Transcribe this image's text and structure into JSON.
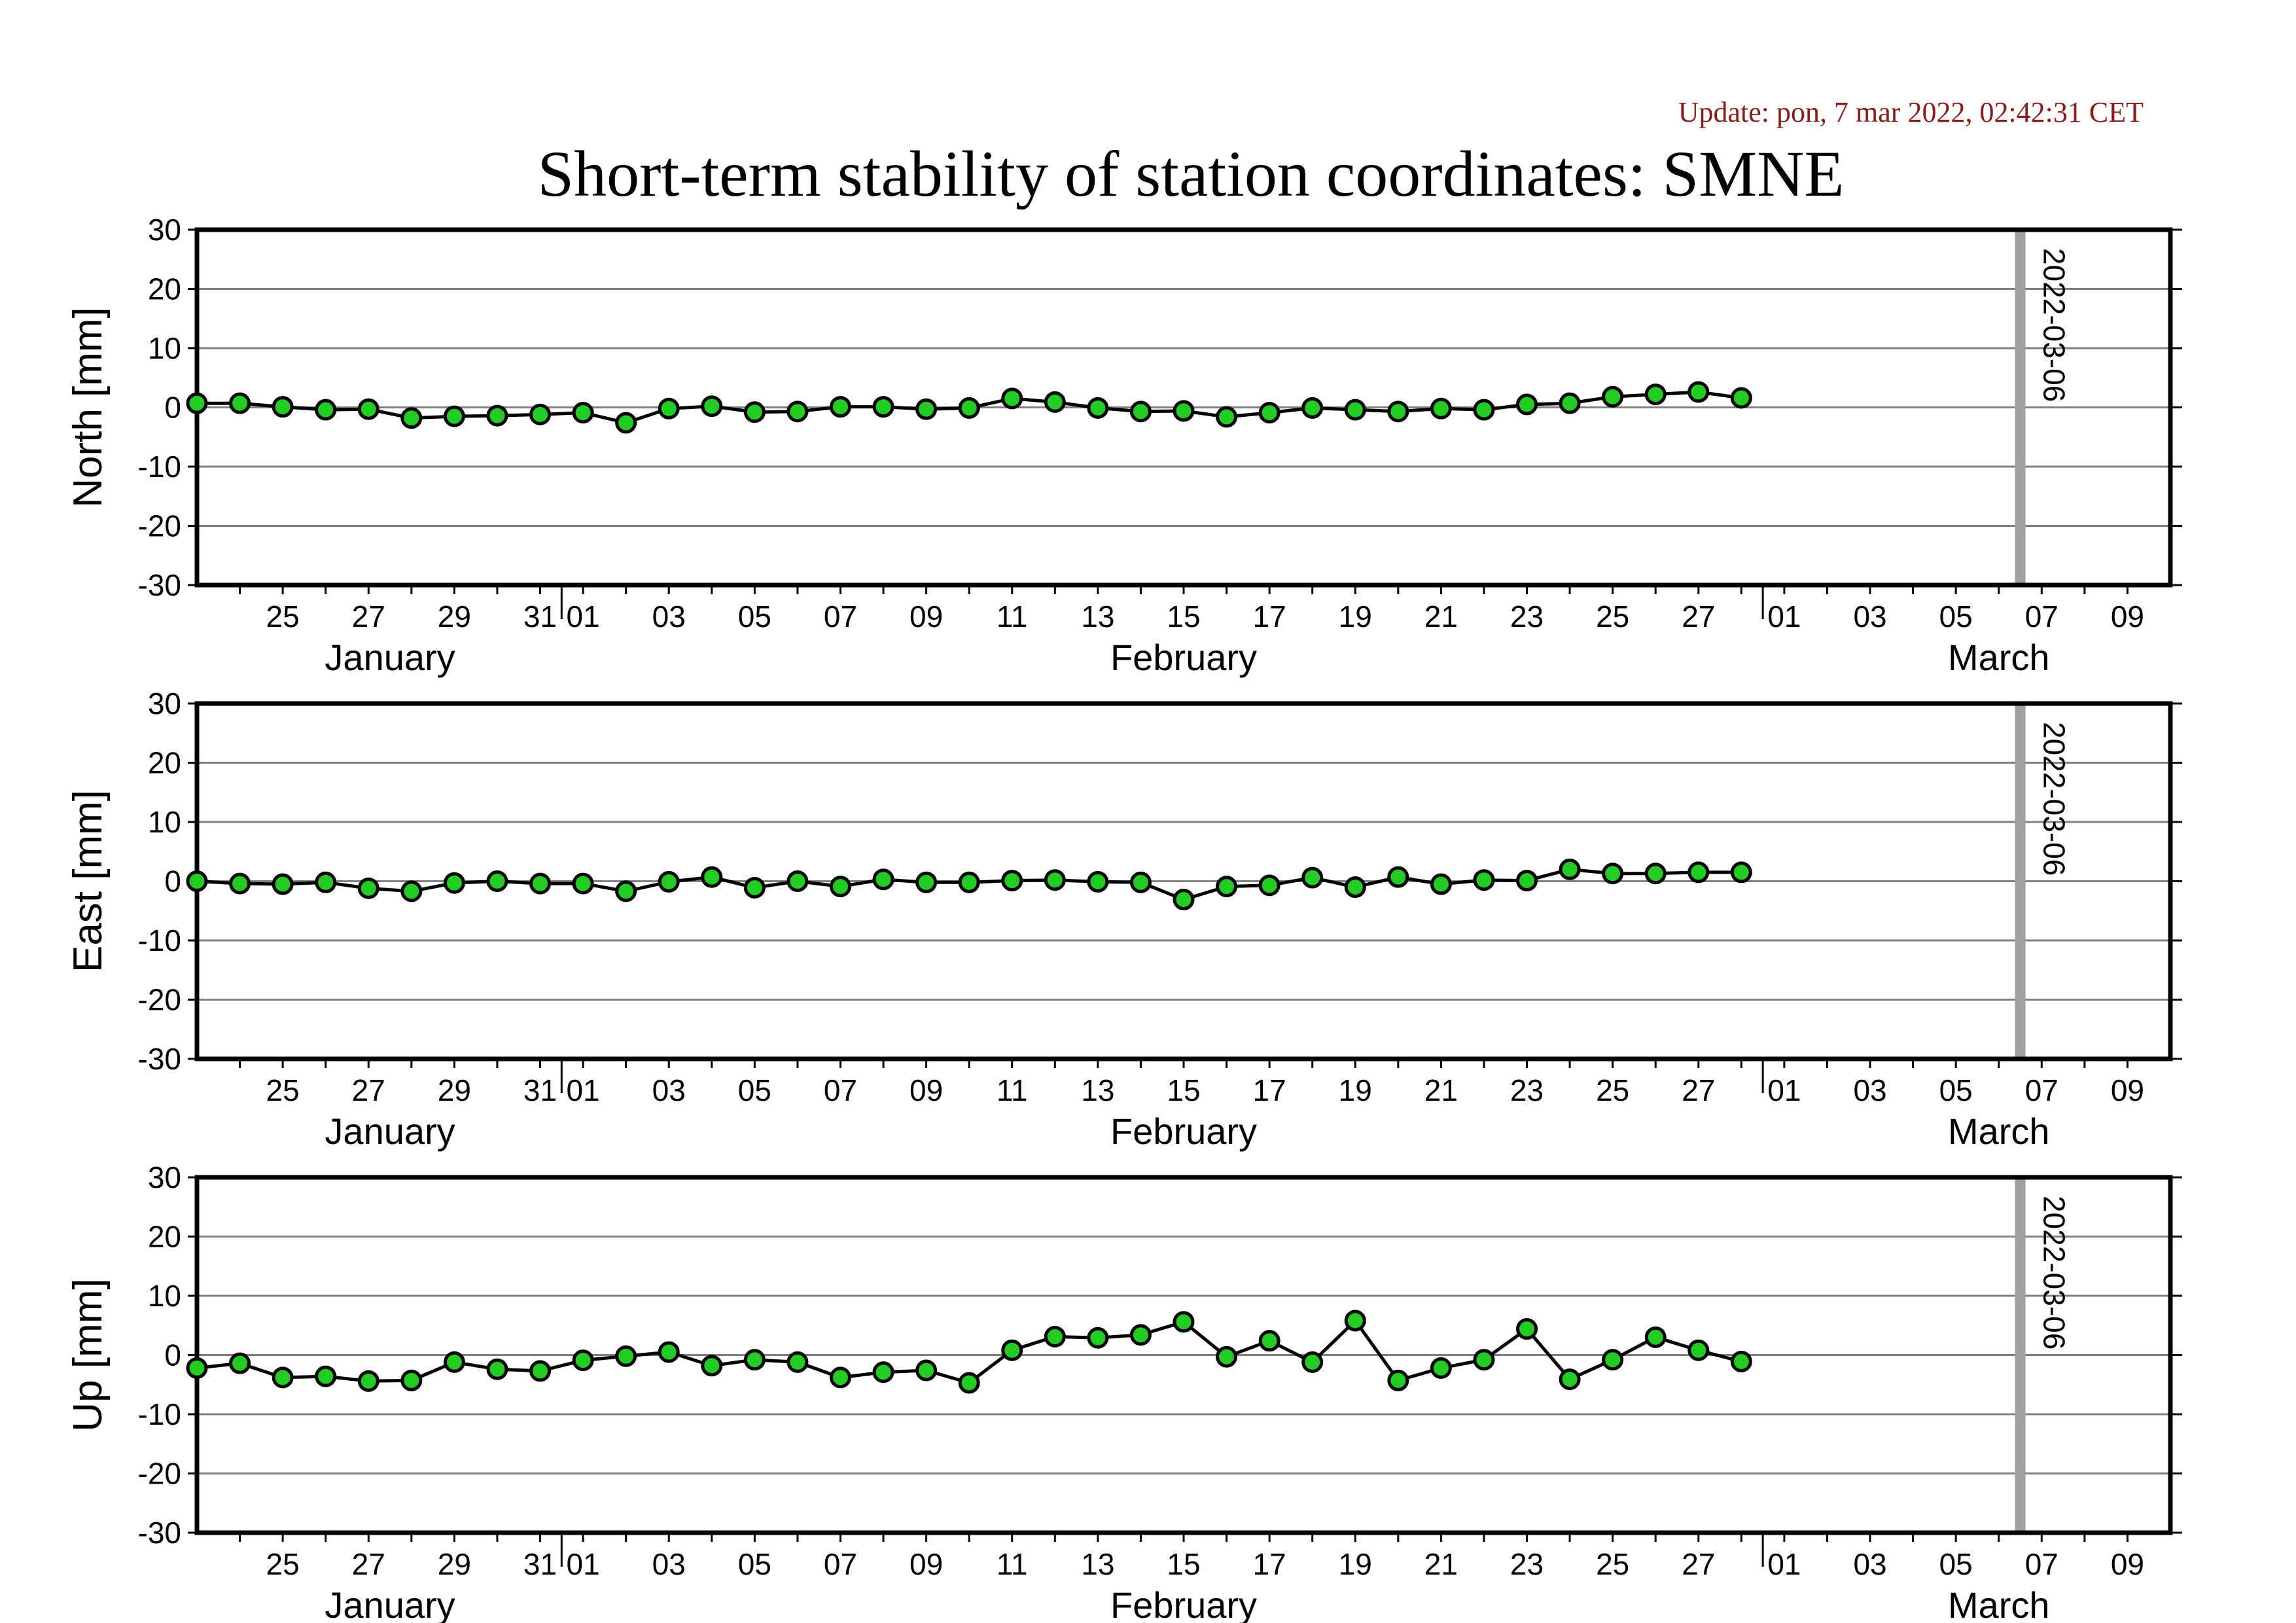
{
  "header": {
    "update": "Update: pon, 7 mar 2022, 02:42:31 CET",
    "title": "Short-term stability of station coordinates: SMNE"
  },
  "colors": {
    "marker_fill": "#22cc22",
    "marker_stroke": "#000000",
    "grid": "#808080",
    "vline": "#a0a0a0",
    "update_text": "#8b1a1a"
  },
  "chart_data": [
    {
      "type": "line",
      "ylabel": "North [mm]",
      "ylim": [
        -30,
        30
      ],
      "yticks": [
        30,
        20,
        10,
        0,
        -10,
        -20,
        -30
      ],
      "x_range": [
        "2022-01-23",
        "2022-03-10"
      ],
      "x_tick_labels": [
        "25",
        "27",
        "29",
        "31",
        "01",
        "03",
        "05",
        "07",
        "09",
        "11",
        "13",
        "15",
        "17",
        "19",
        "21",
        "23",
        "25",
        "27",
        "01",
        "03",
        "05",
        "07",
        "09"
      ],
      "month_labels": [
        "January",
        "February",
        "March"
      ],
      "vline": {
        "x": "2022-03-06",
        "label": "2022-03-06"
      },
      "series": [
        {
          "x": [
            "2022-01-23",
            "2022-01-24",
            "2022-01-25",
            "2022-01-26",
            "2022-01-27",
            "2022-01-28",
            "2022-01-29",
            "2022-01-30",
            "2022-01-31",
            "2022-02-01",
            "2022-02-02",
            "2022-02-03",
            "2022-02-04",
            "2022-02-05",
            "2022-02-06",
            "2022-02-07",
            "2022-02-08",
            "2022-02-09",
            "2022-02-10",
            "2022-02-11",
            "2022-02-12",
            "2022-02-13",
            "2022-02-14",
            "2022-02-15",
            "2022-02-16",
            "2022-02-17",
            "2022-02-18",
            "2022-02-19",
            "2022-02-20",
            "2022-02-21",
            "2022-02-22",
            "2022-02-23",
            "2022-02-24",
            "2022-02-25",
            "2022-02-26",
            "2022-02-27",
            "2022-02-28"
          ],
          "y": [
            0.7,
            0.7,
            0.1,
            -0.4,
            -0.3,
            -1.8,
            -1.5,
            -1.4,
            -1.2,
            -0.9,
            -2.6,
            -0.2,
            0.2,
            -0.8,
            -0.7,
            0.1,
            0.1,
            -0.3,
            -0.1,
            1.5,
            0.9,
            -0.1,
            -0.7,
            -0.6,
            -1.6,
            -0.9,
            -0.1,
            -0.4,
            -0.7,
            -0.2,
            -0.4,
            0.5,
            0.7,
            1.8,
            2.2,
            2.6,
            1.6
          ]
        }
      ]
    },
    {
      "type": "line",
      "ylabel": "East [mm]",
      "ylim": [
        -30,
        30
      ],
      "yticks": [
        30,
        20,
        10,
        0,
        -10,
        -20,
        -30
      ],
      "x_range": [
        "2022-01-23",
        "2022-03-10"
      ],
      "x_tick_labels": [
        "25",
        "27",
        "29",
        "31",
        "01",
        "03",
        "05",
        "07",
        "09",
        "11",
        "13",
        "15",
        "17",
        "19",
        "21",
        "23",
        "25",
        "27",
        "01",
        "03",
        "05",
        "07",
        "09"
      ],
      "month_labels": [
        "January",
        "February",
        "March"
      ],
      "vline": {
        "x": "2022-03-06",
        "label": "2022-03-06"
      },
      "series": [
        {
          "x": [
            "2022-01-23",
            "2022-01-24",
            "2022-01-25",
            "2022-01-26",
            "2022-01-27",
            "2022-01-28",
            "2022-01-29",
            "2022-01-30",
            "2022-01-31",
            "2022-02-01",
            "2022-02-02",
            "2022-02-03",
            "2022-02-04",
            "2022-02-05",
            "2022-02-06",
            "2022-02-07",
            "2022-02-08",
            "2022-02-09",
            "2022-02-10",
            "2022-02-11",
            "2022-02-12",
            "2022-02-13",
            "2022-02-14",
            "2022-02-15",
            "2022-02-16",
            "2022-02-17",
            "2022-02-18",
            "2022-02-19",
            "2022-02-20",
            "2022-02-21",
            "2022-02-22",
            "2022-02-23",
            "2022-02-24",
            "2022-02-25",
            "2022-02-26",
            "2022-02-27",
            "2022-02-28"
          ],
          "y": [
            0.0,
            -0.4,
            -0.5,
            -0.2,
            -1.2,
            -1.7,
            -0.3,
            0.0,
            -0.4,
            -0.4,
            -1.7,
            -0.1,
            0.7,
            -1.1,
            0.0,
            -0.9,
            0.3,
            -0.2,
            -0.2,
            0.1,
            0.2,
            -0.1,
            -0.2,
            -3.1,
            -0.9,
            -0.7,
            0.6,
            -1.0,
            0.7,
            -0.5,
            0.2,
            0.1,
            2.0,
            1.3,
            1.3,
            1.5,
            1.5
          ]
        }
      ]
    },
    {
      "type": "line",
      "ylabel": "Up [mm]",
      "ylim": [
        -30,
        30
      ],
      "yticks": [
        30,
        20,
        10,
        0,
        -10,
        -20,
        -30
      ],
      "x_range": [
        "2022-01-23",
        "2022-03-10"
      ],
      "x_tick_labels": [
        "25",
        "27",
        "29",
        "31",
        "01",
        "03",
        "05",
        "07",
        "09",
        "11",
        "13",
        "15",
        "17",
        "19",
        "21",
        "23",
        "25",
        "27",
        "01",
        "03",
        "05",
        "07",
        "09"
      ],
      "month_labels": [
        "January",
        "February",
        "March"
      ],
      "vline": {
        "x": "2022-03-06",
        "label": "2022-03-06"
      },
      "series": [
        {
          "x": [
            "2022-01-23",
            "2022-01-24",
            "2022-01-25",
            "2022-01-26",
            "2022-01-27",
            "2022-01-28",
            "2022-01-29",
            "2022-01-30",
            "2022-01-31",
            "2022-02-01",
            "2022-02-02",
            "2022-02-03",
            "2022-02-04",
            "2022-02-05",
            "2022-02-06",
            "2022-02-07",
            "2022-02-08",
            "2022-02-09",
            "2022-02-10",
            "2022-02-11",
            "2022-02-12",
            "2022-02-13",
            "2022-02-14",
            "2022-02-15",
            "2022-02-16",
            "2022-02-17",
            "2022-02-18",
            "2022-02-19",
            "2022-02-20",
            "2022-02-21",
            "2022-02-22",
            "2022-02-23",
            "2022-02-24",
            "2022-02-25",
            "2022-02-26",
            "2022-02-27",
            "2022-02-28"
          ],
          "y": [
            -2.2,
            -1.4,
            -3.8,
            -3.6,
            -4.4,
            -4.3,
            -1.2,
            -2.4,
            -2.7,
            -0.9,
            -0.2,
            0.5,
            -1.8,
            -0.8,
            -1.2,
            -3.8,
            -2.9,
            -2.6,
            -4.7,
            0.8,
            3.1,
            2.9,
            3.4,
            5.6,
            -0.3,
            2.4,
            -1.2,
            5.8,
            -4.3,
            -2.2,
            -0.8,
            4.4,
            -4.1,
            -0.8,
            3.0,
            0.8,
            -1.1
          ]
        }
      ]
    }
  ]
}
